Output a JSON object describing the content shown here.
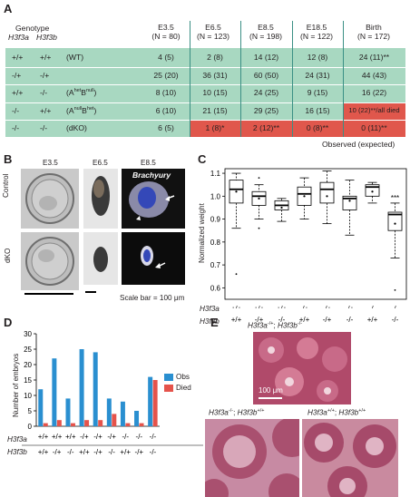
{
  "panel_a": {
    "letter": "A",
    "header_genotype": "Genotype",
    "header_genes": [
      "H3f3a",
      "H3f3b"
    ],
    "columns": [
      {
        "stage": "E3.5",
        "n": "(N = 80)"
      },
      {
        "stage": "E6.5",
        "n": "(N = 123)"
      },
      {
        "stage": "E8.5",
        "n": "(N = 198)"
      },
      {
        "stage": "E18.5",
        "n": "(N = 122)"
      },
      {
        "stage": "Birth",
        "n": "(N = 172)"
      }
    ],
    "rows": [
      {
        "a": "+/+",
        "b": "+/+",
        "label": "(WT)",
        "cells": [
          "4 (5)",
          "2 (8)",
          "14 (12)",
          "12 (8)",
          "24 (11)**"
        ]
      },
      {
        "a": "-/+",
        "b": "-/+",
        "label": "",
        "cells": [
          "25 (20)",
          "36 (31)",
          "60 (50)",
          "24 (31)",
          "44 (43)"
        ]
      },
      {
        "a": "+/+",
        "b": "-/-",
        "label": "(A",
        "cells": [
          "8 (10)",
          "10 (15)",
          "24 (25)",
          "9 (15)",
          "16 (22)"
        ]
      },
      {
        "a": "-/-",
        "b": "+/+",
        "label": "(A",
        "cells": [
          "6 (10)",
          "21 (15)",
          "29 (25)",
          "16 (15)",
          "10 (22)**/all died"
        ]
      },
      {
        "a": "-/-",
        "b": "-/-",
        "label": "(dKO)",
        "cells": [
          "6 (5)",
          "1 (8)*",
          "2 (12)**",
          "0 (8)**",
          "0 (11)**"
        ]
      }
    ],
    "footnote": "Observed (expected)"
  },
  "panel_b": {
    "letter": "B",
    "stages": [
      "E3.5",
      "E6.5",
      "E8.5"
    ],
    "rows": [
      "Control",
      "dKO"
    ],
    "stain_label": "Brachyury",
    "scale_bar": "Scale bar = 100 μm"
  },
  "panel_c": {
    "letter": "C",
    "y_label": "Normalized weight",
    "h3f3a_label": "H3f3a",
    "h3f3b_label": "H3f3b",
    "significance": "***"
  },
  "panel_d": {
    "letter": "D",
    "y_label": "Number of embryos",
    "h3f3a_label": "H3f3a",
    "h3f3b_label": "H3f3b",
    "legend": [
      "Obs",
      "Died"
    ],
    "colors": {
      "obs": "#2a8fd0",
      "died": "#e5534b"
    }
  },
  "panel_e": {
    "letter": "E",
    "scale": "100 μm",
    "labels": [
      "H3f3a",
      "H3f3a",
      "H3f3a"
    ]
  },
  "chart_data": [
    {
      "type": "box",
      "panel": "C",
      "ylabel": "Normalized weight",
      "ylim": [
        0.55,
        1.12
      ],
      "yticks": [
        0.6,
        0.7,
        0.8,
        0.9,
        1.0,
        1.1
      ],
      "h3f3a": [
        "+/+",
        "+/+",
        "+/+",
        "-/+",
        "-/+",
        "-/+",
        "-/-",
        "-/-"
      ],
      "h3f3b": [
        "+/+",
        "-/+",
        "-/-",
        "+/+",
        "-/+",
        "-/-",
        "+/+",
        "-/-"
      ],
      "boxes": [
        {
          "min": 0.86,
          "q1": 0.97,
          "median": 1.03,
          "q3": 1.07,
          "max": 1.1,
          "mean": 1.02,
          "outliers": [
            0.66
          ]
        },
        {
          "min": 0.9,
          "q1": 0.96,
          "median": 1.0,
          "q3": 1.02,
          "max": 1.05,
          "mean": 0.99,
          "outliers": [
            1.08,
            0.86
          ]
        },
        {
          "min": 0.89,
          "q1": 0.94,
          "median": 0.96,
          "q3": 0.98,
          "max": 0.99,
          "mean": 0.95,
          "outliers": []
        },
        {
          "min": 0.9,
          "q1": 0.96,
          "median": 1.01,
          "q3": 1.04,
          "max": 1.08,
          "mean": 1.0,
          "outliers": []
        },
        {
          "min": 0.88,
          "q1": 0.97,
          "median": 1.03,
          "q3": 1.06,
          "max": 1.11,
          "mean": 1.0,
          "outliers": []
        },
        {
          "min": 0.83,
          "q1": 0.94,
          "median": 0.99,
          "q3": 1.0,
          "max": 1.07,
          "mean": 0.98,
          "outliers": []
        },
        {
          "min": 0.97,
          "q1": 1.0,
          "median": 1.04,
          "q3": 1.05,
          "max": 1.06,
          "mean": 1.02,
          "outliers": []
        },
        {
          "min": 0.73,
          "q1": 0.85,
          "median": 0.92,
          "q3": 0.93,
          "max": 0.97,
          "mean": 0.88,
          "outliers": [
            0.59
          ]
        }
      ]
    },
    {
      "type": "bar",
      "panel": "D",
      "ylabel": "Number of embryos",
      "ylim": [
        0,
        30
      ],
      "yticks": [
        0,
        5,
        10,
        15,
        20,
        25,
        30
      ],
      "h3f3a": [
        "+/+",
        "+/+",
        "+/+",
        "-/+",
        "-/+",
        "-/+",
        "-/-",
        "-/-",
        "-/-"
      ],
      "h3f3b": [
        "+/+",
        "-/+",
        "-/-",
        "+/+",
        "-/+",
        "-/-",
        "+/+",
        "-/+",
        "-/-"
      ],
      "series": [
        {
          "name": "Obs",
          "values": [
            12,
            22,
            9,
            25,
            24,
            9,
            8,
            5,
            16
          ]
        },
        {
          "name": "Died",
          "values": [
            1,
            2,
            1,
            2,
            2,
            4,
            1,
            1,
            15
          ]
        }
      ]
    }
  ]
}
